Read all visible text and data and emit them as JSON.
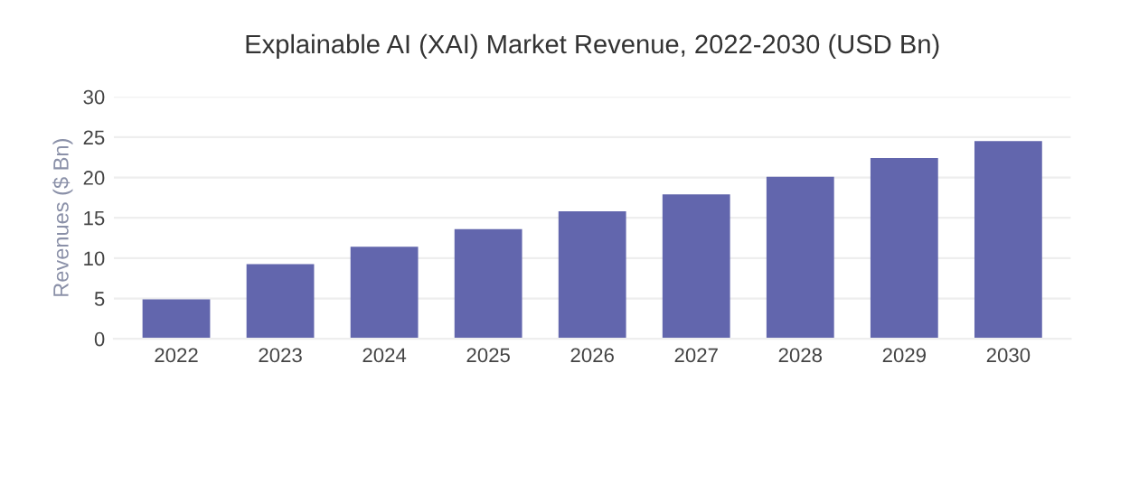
{
  "chart_data": {
    "type": "bar",
    "title": "Explainable AI (XAI) Market Revenue, 2022-2030 (USD Bn)",
    "ylabel": "Revenues ($ Bn)",
    "categories": [
      "2022",
      "2023",
      "2024",
      "2025",
      "2026",
      "2027",
      "2028",
      "2029",
      "2030"
    ],
    "values": [
      4.9,
      9.25,
      11.4,
      13.6,
      15.8,
      17.9,
      20.1,
      22.4,
      24.5
    ],
    "color": "#6266ad",
    "ylim": [
      0,
      30
    ],
    "yticks": [
      0,
      5,
      10,
      15,
      20,
      25,
      30
    ],
    "grid": "y"
  }
}
